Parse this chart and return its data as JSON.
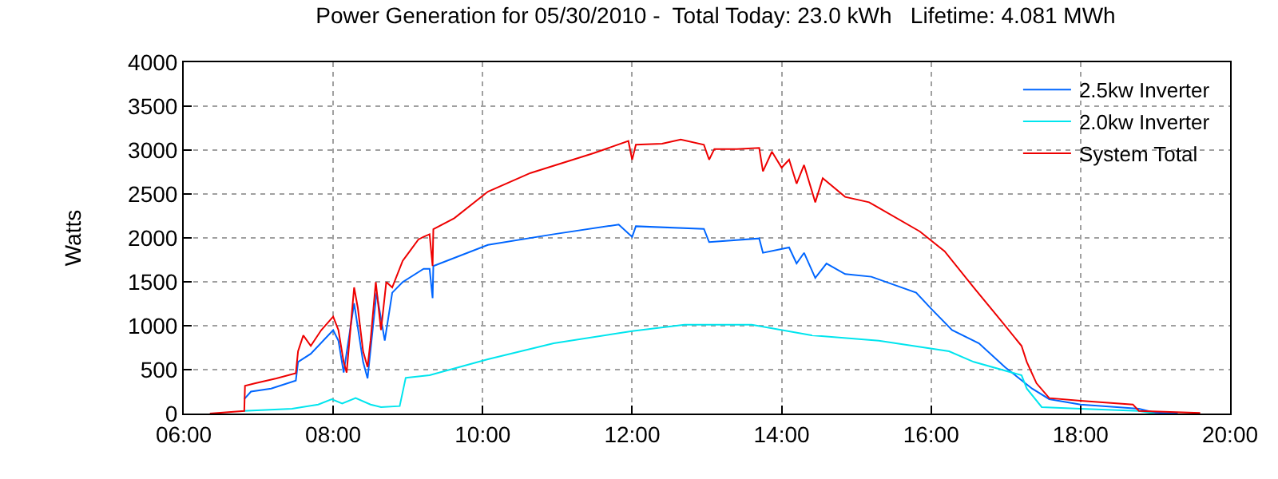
{
  "chart_data": {
    "type": "line",
    "title": "Power Generation for 05/30/2010 -  Total Today: 23.0 kWh   Lifetime: 4.081 MWh",
    "ylabel": "Watts",
    "xlim": [
      6,
      20
    ],
    "ylim": [
      0,
      4000
    ],
    "xticks": [
      {
        "value": 6,
        "label": "06:00"
      },
      {
        "value": 8,
        "label": "08:00"
      },
      {
        "value": 10,
        "label": "10:00"
      },
      {
        "value": 12,
        "label": "12:00"
      },
      {
        "value": 14,
        "label": "14:00"
      },
      {
        "value": 16,
        "label": "16:00"
      },
      {
        "value": 18,
        "label": "18:00"
      },
      {
        "value": 20,
        "label": "20:00"
      }
    ],
    "yticks": [
      0,
      500,
      1000,
      1500,
      2000,
      2500,
      3000,
      3500,
      4000
    ],
    "grid": true,
    "legend": "top right",
    "marker": "none",
    "line_style": "solid",
    "series": [
      {
        "name": "2.5kw Inverter",
        "color": "#0066ff",
        "x": [
          6.81,
          6.9,
          7.17,
          7.5,
          7.53,
          7.7,
          8.0,
          8.07,
          8.14,
          8.28,
          8.4,
          8.46,
          8.58,
          8.69,
          8.79,
          8.93,
          9.21,
          9.29,
          9.33,
          9.34,
          10.07,
          10.95,
          11.82,
          12.0,
          12.05,
          12.96,
          13.03,
          13.7,
          13.75,
          14.1,
          14.2,
          14.3,
          14.45,
          14.6,
          14.85,
          15.2,
          15.8,
          16.0,
          16.28,
          16.64,
          16.99,
          17.35,
          17.58,
          18.0,
          18.78,
          18.99,
          19.3
        ],
        "values": [
          164,
          250,
          285,
          376,
          588,
          680,
          950,
          830,
          467,
          1255,
          588,
          400,
          1376,
          830,
          1376,
          1497,
          1648,
          1648,
          1315,
          1680,
          1921,
          2042,
          2152,
          2012,
          2133,
          2103,
          1952,
          1994,
          1830,
          1891,
          1709,
          1830,
          1545,
          1709,
          1588,
          1558,
          1376,
          1194,
          950,
          800,
          527,
          285,
          164,
          103,
          55,
          12,
          0
        ]
      },
      {
        "name": "2.0kw Inverter",
        "color": "#00e5ee",
        "x": [
          6.8,
          7.45,
          7.8,
          7.98,
          8.12,
          8.3,
          8.5,
          8.64,
          8.89,
          8.97,
          9.29,
          10.07,
          10.95,
          12.0,
          12.7,
          13.6,
          14.4,
          15.3,
          16.24,
          16.57,
          17.21,
          17.28,
          17.48,
          18.0,
          18.78,
          18.99
        ],
        "values": [
          30,
          55,
          103,
          164,
          115,
          176,
          103,
          73,
          85,
          406,
          436,
          618,
          800,
          939,
          1012,
          1012,
          891,
          830,
          709,
          588,
          436,
          285,
          73,
          55,
          30,
          0
        ]
      },
      {
        "name": "System Total",
        "color": "#ee0000",
        "x": [
          6.35,
          6.81,
          6.82,
          6.96,
          7.24,
          7.5,
          7.53,
          7.6,
          7.7,
          7.84,
          8.0,
          8.07,
          8.14,
          8.18,
          8.28,
          8.33,
          8.4,
          8.46,
          8.5,
          8.57,
          8.64,
          8.71,
          8.79,
          8.93,
          9.14,
          9.21,
          9.29,
          9.33,
          9.34,
          9.62,
          10.07,
          10.64,
          11.48,
          11.95,
          12.0,
          12.05,
          12.4,
          12.65,
          12.96,
          13.03,
          13.1,
          13.4,
          13.7,
          13.75,
          13.87,
          14.0,
          14.1,
          14.2,
          14.3,
          14.45,
          14.55,
          14.85,
          15.17,
          15.85,
          16.18,
          16.57,
          16.92,
          17.21,
          17.28,
          17.41,
          17.58,
          18.0,
          18.7,
          18.78,
          19.2,
          19.6
        ],
        "values": [
          0,
          30,
          315,
          345,
          400,
          460,
          709,
          890,
          770,
          950,
          1103,
          950,
          588,
          467,
          1436,
          1200,
          709,
          530,
          830,
          1497,
          950,
          1497,
          1436,
          1739,
          1982,
          2012,
          2042,
          1680,
          2100,
          2224,
          2527,
          2739,
          2964,
          3103,
          2891,
          3061,
          3073,
          3121,
          3061,
          2891,
          3012,
          3012,
          3024,
          2758,
          2982,
          2800,
          2891,
          2618,
          2830,
          2406,
          2679,
          2467,
          2406,
          2073,
          1848,
          1436,
          1073,
          770,
          588,
          345,
          176,
          145,
          103,
          30,
          18,
          6
        ]
      }
    ]
  }
}
